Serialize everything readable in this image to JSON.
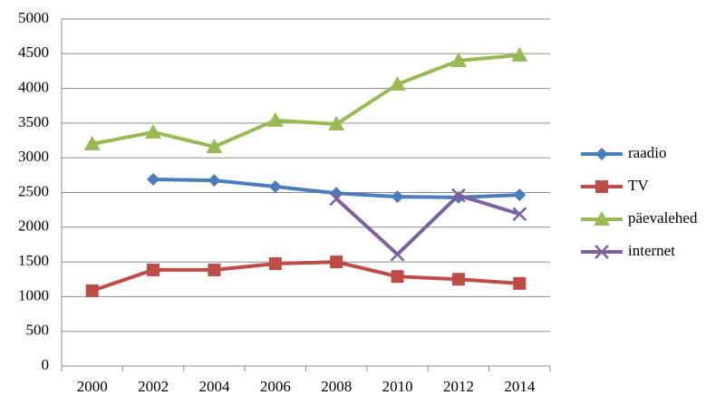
{
  "chart_data": {
    "type": "line",
    "categories": [
      "2000",
      "2002",
      "2004",
      "2006",
      "2008",
      "2010",
      "2012",
      "2014"
    ],
    "series": [
      {
        "name": "raadio",
        "color": "#4a7ebb",
        "marker": "diamond",
        "values": [
          null,
          2690,
          2675,
          2585,
          2490,
          2440,
          2430,
          2465
        ]
      },
      {
        "name": "TV",
        "color": "#be4b48",
        "marker": "square",
        "values": [
          1085,
          1385,
          1385,
          1475,
          1500,
          1290,
          1250,
          1190
        ]
      },
      {
        "name": "päevalehed",
        "color": "#98b954",
        "marker": "triangle",
        "values": [
          3200,
          3370,
          3160,
          3540,
          3485,
          4060,
          4400,
          4480
        ]
      },
      {
        "name": "internet",
        "color": "#7d60a0",
        "marker": "x",
        "values": [
          null,
          null,
          null,
          null,
          2410,
          1610,
          2460,
          2190
        ]
      }
    ],
    "ylim": [
      0,
      5000
    ],
    "yticks": [
      0,
      500,
      1000,
      1500,
      2000,
      2500,
      3000,
      3500,
      4000,
      4500,
      5000
    ],
    "grid": true,
    "legend": "right"
  }
}
